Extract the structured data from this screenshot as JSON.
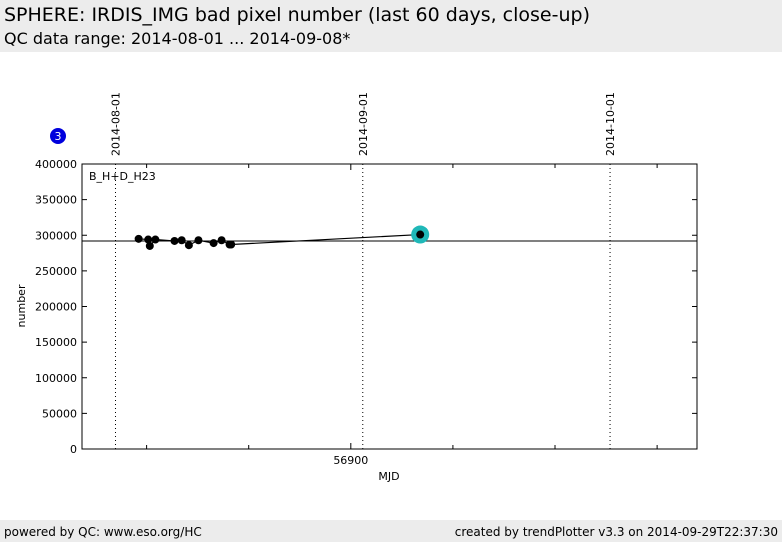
{
  "header": {
    "title": "SPHERE: IRDIS_IMG bad pixel number (last 60 days, close-up)",
    "subtitle": "QC data range: 2014-08-01 ... 2014-09-08*"
  },
  "footer": {
    "left": "powered by QC: www.eso.org/HC",
    "right": "created by trendPlotter v3.3 on 2014-09-29T22:37:30"
  },
  "badge": {
    "label": "3",
    "color": "#0000dd"
  },
  "chart_data": {
    "type": "line",
    "xlabel": "MJD",
    "ylabel": "number",
    "annotation": "B_H+D_H23",
    "xlim": [
      56866.3,
      56943.4
    ],
    "ylim": [
      0,
      400000
    ],
    "y_ticks": [
      0,
      50000,
      100000,
      150000,
      200000,
      250000,
      300000,
      350000,
      400000
    ],
    "y_tick_labels": [
      "0",
      "50000",
      "100000",
      "150000",
      "200000",
      "250000",
      "300000",
      "350000",
      "400000"
    ],
    "x_labeled_ticks": [
      {
        "value": 56900,
        "label": "56900"
      }
    ],
    "x_minor_ticks": [
      56874.4,
      56887.2,
      56912.8,
      56925.6,
      56938.4
    ],
    "date_marks": [
      {
        "x": 56870.5,
        "label": "2014-08-01"
      },
      {
        "x": 56901.5,
        "label": "2014-09-01"
      },
      {
        "x": 56932.5,
        "label": "2014-10-01"
      }
    ],
    "reference_line": 292000,
    "series": [
      {
        "x": [
          56873.4,
          56874.6,
          56874.8,
          56875.5,
          56877.9,
          56878.8,
          56879.7,
          56880.9,
          56882.8,
          56883.8,
          56884.8,
          56885.0
        ],
        "y": [
          295000,
          294000,
          285000,
          294000,
          292000,
          293000,
          286000,
          293000,
          289000,
          293000,
          287000,
          287000
        ],
        "color": "#000000"
      }
    ],
    "highlight": {
      "x": 56908.7,
      "y": 301000,
      "color": "#20b8b8"
    }
  }
}
